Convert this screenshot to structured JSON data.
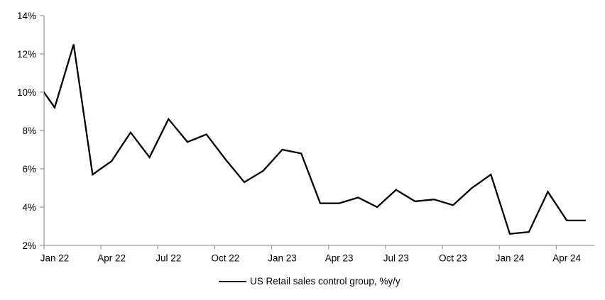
{
  "chart_data": {
    "type": "line",
    "title": "",
    "legend": {
      "label": "US Retail sales control group, %y/y",
      "position": "bottom-center"
    },
    "series": [
      {
        "name": "US Retail sales control group, %y/y",
        "color": "#000000",
        "months": [
          "Dec 21",
          "Jan 22",
          "Feb 22",
          "Mar 22",
          "Apr 22",
          "May 22",
          "Jun 22",
          "Jul 22",
          "Aug 22",
          "Sep 22",
          "Oct 22",
          "Nov 22",
          "Dec 22",
          "Jan 23",
          "Feb 23",
          "Mar 23",
          "Apr 23",
          "May 23",
          "Jun 23",
          "Jul 23",
          "Aug 23",
          "Sep 23",
          "Oct 23",
          "Nov 23",
          "Dec 23",
          "Jan 24",
          "Feb 24",
          "Mar 24",
          "Apr 24",
          "May 24"
        ],
        "values": [
          10.6,
          9.2,
          12.5,
          5.7,
          6.4,
          7.9,
          6.6,
          8.6,
          7.4,
          7.8,
          6.5,
          5.3,
          5.9,
          7.0,
          6.8,
          4.2,
          4.2,
          4.5,
          4.0,
          4.9,
          4.3,
          4.4,
          4.1,
          5.0,
          5.7,
          2.6,
          2.7,
          4.8,
          3.3,
          3.3
        ]
      }
    ],
    "x_axis": {
      "tick_labels": [
        "Jan 22",
        "Apr 22",
        "Jul 22",
        "Oct 22",
        "Jan 23",
        "Apr 23",
        "Jul 23",
        "Oct 23",
        "Jan 24",
        "Apr 24"
      ],
      "tick_label_month_step": 3
    },
    "y_axis": {
      "tick_labels": [
        "2%",
        "4%",
        "6%",
        "8%",
        "10%",
        "12%",
        "14%"
      ],
      "tick_values": [
        2,
        4,
        6,
        8,
        10,
        12,
        14
      ],
      "range": [
        2,
        14
      ],
      "unit": "%"
    },
    "grid": "off",
    "axis_color": "#9e9e9e",
    "line_color": "#000000",
    "text_color": "#000000",
    "background_color": "#ffffff"
  }
}
